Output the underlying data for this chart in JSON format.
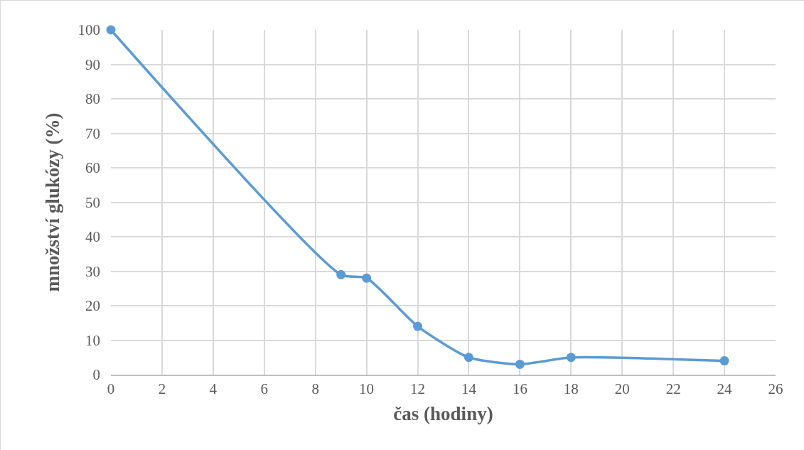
{
  "chart_data": {
    "type": "line",
    "xlabel": "čas (hodiny)",
    "ylabel": "množství glukózy (%)",
    "x": [
      0,
      9,
      10,
      12,
      14,
      16,
      18,
      24
    ],
    "values": [
      100,
      29,
      28,
      14,
      5,
      3,
      5,
      4
    ],
    "color": "#5b9bd5",
    "marker": "circle",
    "line_style": "solid",
    "grid": true,
    "xlim": [
      0,
      26
    ],
    "xticks": [
      0,
      2,
      4,
      6,
      8,
      10,
      12,
      14,
      16,
      18,
      20,
      22,
      24,
      26
    ],
    "ylim": [
      0,
      100
    ],
    "yticks": [
      0,
      10,
      20,
      30,
      40,
      50,
      60,
      70,
      80,
      90,
      100
    ]
  }
}
